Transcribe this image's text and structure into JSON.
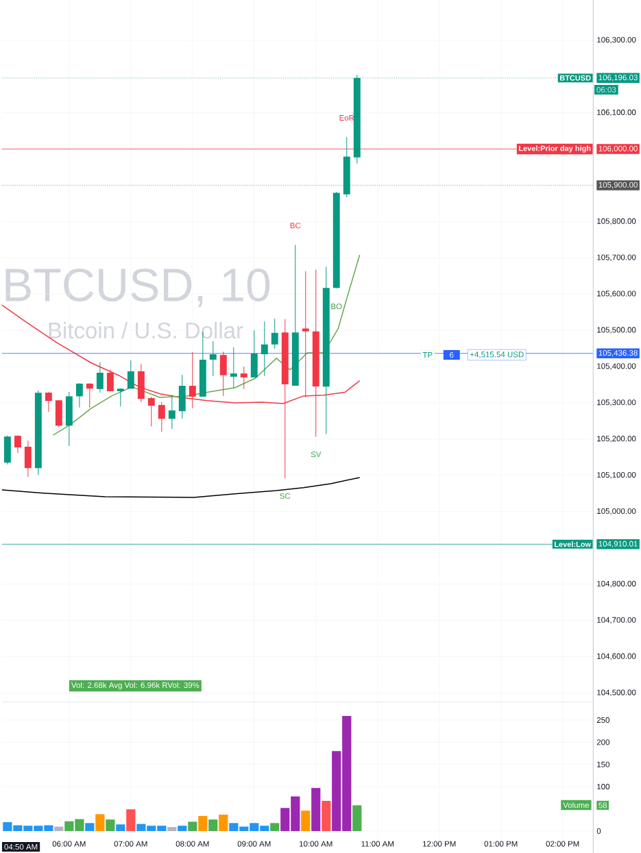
{
  "chart_data": [
    {
      "type": "candlestick",
      "title": "BTCUSD, 10",
      "subtitle": "Bitcoin / U.S. Dollar",
      "x": [
        5,
        5.167,
        5.333,
        5.5,
        5.667,
        5.833,
        6,
        6.167,
        6.333,
        6.5,
        6.667,
        6.833,
        7,
        7.167,
        7.333,
        7.5,
        7.667,
        7.833,
        8,
        8.167,
        8.333,
        8.5,
        8.667,
        8.833,
        9,
        9.167,
        9.333,
        9.5,
        9.667,
        9.833,
        10,
        10.167,
        10.333,
        10.5,
        10.667
      ],
      "ohlc": [
        [
          105135,
          105210,
          105130,
          105207
        ],
        [
          105209,
          105211,
          105162,
          105177
        ],
        [
          105179,
          105196,
          105096,
          105120
        ],
        [
          105120,
          105334,
          105101,
          105328
        ],
        [
          105328,
          105330,
          105275,
          105305
        ],
        [
          105307,
          105307,
          105233,
          105237
        ],
        [
          105237,
          105330,
          105181,
          105318
        ],
        [
          105318,
          105354,
          105287,
          105353
        ],
        [
          105353,
          105354,
          105287,
          105339
        ],
        [
          105338,
          105411,
          105328,
          105383
        ],
        [
          105383,
          105392,
          105332,
          105332
        ],
        [
          105332,
          105340,
          105290,
          105339
        ],
        [
          105339,
          105417,
          105339,
          105387
        ],
        [
          105387,
          105407,
          105302,
          105311
        ],
        [
          105313,
          105317,
          105235,
          105292
        ],
        [
          105294,
          105302,
          105220,
          105256
        ],
        [
          105256,
          105322,
          105228,
          105279
        ],
        [
          105277,
          105377,
          105256,
          105347
        ],
        [
          105347,
          105440,
          105285,
          105317
        ],
        [
          105317,
          105495,
          105317,
          105419
        ],
        [
          105419,
          105470,
          105374,
          105434
        ],
        [
          105432,
          105441,
          105319,
          105376
        ],
        [
          105372,
          105453,
          105340,
          105381
        ],
        [
          105381,
          105400,
          105338,
          105370
        ],
        [
          105370,
          105500,
          105370,
          105436
        ],
        [
          105434,
          105524,
          105374,
          105461
        ],
        [
          105461,
          105532,
          105449,
          105493
        ],
        [
          105494,
          105531,
          105092,
          105351
        ],
        [
          105347,
          105736,
          105347,
          105494
        ],
        [
          105505,
          105663,
          105315,
          105497
        ],
        [
          105497,
          105667,
          105207,
          105345
        ],
        [
          105345,
          105675,
          105214,
          105617
        ],
        [
          105617,
          105882,
          105615,
          105879
        ],
        [
          105875,
          106033,
          105867,
          105979
        ],
        [
          105977,
          106205,
          105960,
          106196.03
        ]
      ],
      "colors": [
        "#089981",
        "#f23645",
        "#f23645",
        "#089981",
        "#f23645",
        "#f23645",
        "#089981",
        "#089981",
        "#f23645",
        "#089981",
        "#f23645",
        "#089981",
        "#089981",
        "#f23645",
        "#f23645",
        "#f23645",
        "#089981",
        "#089981",
        "#f23645",
        "#089981",
        "#089981",
        "#f23645",
        "#089981",
        "#f23645",
        "#089981",
        "#089981",
        "#089981",
        "#f23645",
        "#089981",
        "#f23645",
        "#f23645",
        "#089981",
        "#089981",
        "#089981",
        "#089981"
      ],
      "series": [
        {
          "type": "line",
          "color": "#f23645",
          "x": [
            4.91,
            5.3,
            5.8,
            6.36,
            6.8,
            7.13,
            7.47,
            7.8,
            8.24,
            8.69,
            9.13,
            9.47,
            9.8,
            10.13,
            10.47,
            10.71
          ],
          "values": [
            105570,
            105523,
            105466,
            105410,
            105376,
            105344,
            105325,
            105315,
            105306,
            105300,
            105302,
            105298,
            105319,
            105321,
            105329,
            105361
          ]
        },
        {
          "type": "line",
          "color": "#000000",
          "x": [
            4.91,
            5.58,
            6.58,
            8.02,
            8.69,
            9.36,
            9.8,
            10.24,
            10.71
          ],
          "values": [
            105060,
            105051,
            105041,
            105039,
            105049,
            105058,
            105066,
            105077,
            105094
          ]
        },
        {
          "type": "line",
          "color": "#6aa84f",
          "x": [
            5.74,
            6.02,
            6.36,
            6.69,
            7.02,
            7.47,
            7.91,
            8.24,
            8.69,
            9.02,
            9.36,
            9.58,
            9.86,
            10.13,
            10.36,
            10.52,
            10.71
          ],
          "values": [
            105211,
            105240,
            105285,
            105319,
            105344,
            105315,
            105319,
            105329,
            105342,
            105368,
            105423,
            105391,
            105438,
            105438,
            105504,
            105599,
            105708
          ]
        }
      ],
      "xlim": [
        4.91,
        14.49
      ],
      "ylim": [
        104476,
        106411
      ],
      "xticks": [
        {
          "value": 6,
          "label": null
        },
        {
          "value": 7,
          "label": null
        },
        {
          "value": 8,
          "label": null
        },
        {
          "value": 9,
          "label": null
        },
        {
          "value": 10,
          "label": null
        },
        {
          "value": 11,
          "label": null
        },
        {
          "value": 12,
          "label": null
        },
        {
          "value": 13,
          "label": null
        },
        {
          "value": 14,
          "label": null
        }
      ],
      "yticks": [
        {
          "value": 104500,
          "label": "104,500.00"
        },
        {
          "value": 104600,
          "label": "104,600.00"
        },
        {
          "value": 104700,
          "label": "104,700.00"
        },
        {
          "value": 104800,
          "label": "104,800.00"
        },
        {
          "value": 104910.01,
          "label": "104,910.01"
        },
        {
          "value": 105000,
          "label": "105,000.00"
        },
        {
          "value": 105100,
          "label": "105,100.00"
        },
        {
          "value": 105200,
          "label": "105,200.00"
        },
        {
          "value": 105300,
          "label": "105,300.00"
        },
        {
          "value": 105400,
          "label": "105,400.00"
        },
        {
          "value": 105436.38,
          "label": "105,436.38"
        },
        {
          "value": 105500,
          "label": "105,500.00"
        },
        {
          "value": 105600,
          "label": "105,600.00"
        },
        {
          "value": 105700,
          "label": "105,700.00"
        },
        {
          "value": 105800,
          "label": "105,800.00"
        },
        {
          "value": 105900,
          "label": "105,900.00"
        },
        {
          "value": 106000,
          "label": "106,000.00"
        },
        {
          "value": 106100,
          "label": "106,100.00"
        },
        {
          "value": 106196.03,
          "label": "106,196.03"
        },
        {
          "value": 106300,
          "label": "106,300.00"
        }
      ],
      "grid": true,
      "tick_labels": "y",
      "ref_lines": [
        {
          "axis": "y",
          "value": 106196.03,
          "label": "BTCUSD",
          "color": "#089981",
          "line_style": "dotted"
        },
        {
          "axis": "y",
          "value": 106000,
          "label": "Level:Prior day high",
          "color": "#f23645"
        },
        {
          "axis": "y",
          "value": 105900,
          "color": "#555555",
          "line_style": "dotted"
        },
        {
          "axis": "y",
          "value": 105436.38,
          "color": "#2962ff"
        },
        {
          "axis": "y",
          "value": 104910.01,
          "label": "Level:Low",
          "color": "#089981"
        }
      ],
      "annotations": [
        {
          "text": "BC",
          "x": 9.667,
          "y": 105736
        },
        {
          "text": "EoR",
          "x": 10.5,
          "y": 106033
        },
        {
          "text": "BO",
          "x": 10.333,
          "y": 105615
        },
        {
          "text": "SV",
          "x": 10.0,
          "y": 105207
        },
        {
          "text": "SC",
          "x": 9.5,
          "y": 105092
        },
        "Vol: 2.68k   Avg Vol: 6.96k   RVol: 39%",
        "06:03",
        "TP",
        "6",
        "+4,515.54 USD"
      ]
    },
    {
      "type": "bar",
      "x": [
        5,
        5.167,
        5.333,
        5.5,
        5.667,
        5.833,
        6,
        6.167,
        6.333,
        6.5,
        6.667,
        6.833,
        7,
        7.167,
        7.333,
        7.5,
        7.667,
        7.833,
        8,
        8.167,
        8.333,
        8.5,
        8.667,
        8.833,
        9,
        9.167,
        9.333,
        9.5,
        9.667,
        9.833,
        10,
        10.167,
        10.333,
        10.5,
        10.667
      ],
      "values": [
        20,
        13,
        12,
        12,
        13,
        10,
        22,
        27,
        18,
        38,
        26,
        15,
        49,
        16,
        12,
        12,
        9,
        12,
        21,
        34,
        26,
        37,
        18,
        10,
        18,
        12,
        18,
        52,
        78,
        46,
        97,
        68,
        180,
        259,
        58
      ],
      "colors": [
        "#2196f3",
        "#2196f3",
        "#2196f3",
        "#2196f3",
        "#2196f3",
        "#b2b5be",
        "#4caf50",
        "#4caf50",
        "#2196f3",
        "#ff9800",
        "#4caf50",
        "#2196f3",
        "#ff5252",
        "#2196f3",
        "#2196f3",
        "#2196f3",
        "#b2b5be",
        "#2196f3",
        "#4caf50",
        "#ff9800",
        "#4caf50",
        "#ff9800",
        "#2196f3",
        "#2196f3",
        "#2196f3",
        "#2196f3",
        "#4caf50",
        "#9c27b0",
        "#9c27b0",
        "#ff9800",
        "#9c27b0",
        "#ff5252",
        "#9c27b0",
        "#9c27b0",
        "#4caf50"
      ],
      "xlim": [
        4.91,
        14.49
      ],
      "ylim": [
        -17,
        290
      ],
      "xticks": [
        {
          "value": 6,
          "label": "06:00 AM"
        },
        {
          "value": 7,
          "label": "07:00 AM"
        },
        {
          "value": 8,
          "label": "08:00 AM"
        },
        {
          "value": 9,
          "label": "09:00 AM"
        },
        {
          "value": 10,
          "label": "10:00 AM"
        },
        {
          "value": 11,
          "label": "11:00 AM"
        },
        {
          "value": 12,
          "label": "12:00 PM"
        },
        {
          "value": 13,
          "label": "01:00 PM"
        },
        {
          "value": 14,
          "label": "02:00 PM"
        }
      ],
      "yticks": [
        0,
        {
          "value": 58,
          "label": "58"
        },
        100,
        150,
        200,
        250
      ],
      "grid": true,
      "annotations": [
        "Volume",
        "04:50 AM"
      ]
    }
  ]
}
